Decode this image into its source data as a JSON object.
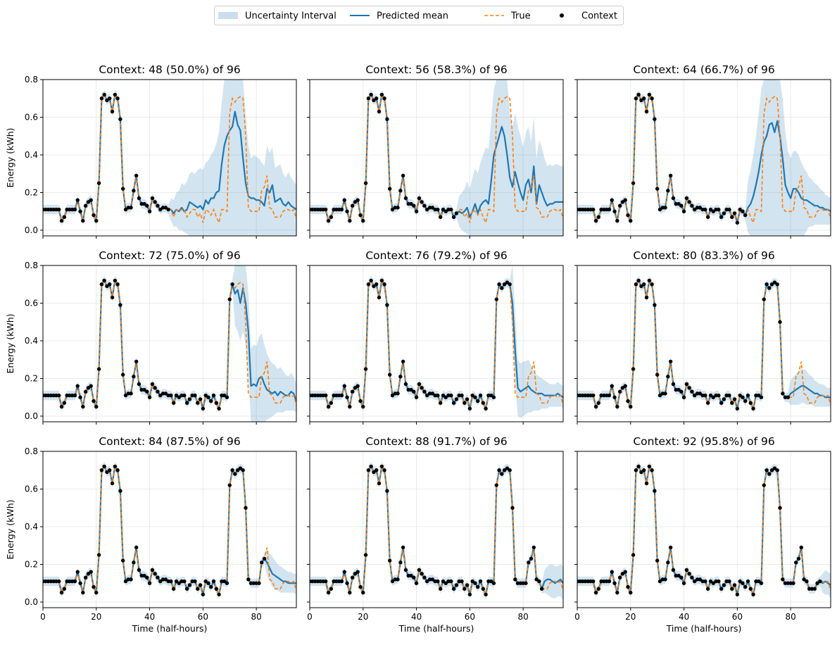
{
  "legend": {
    "items": [
      {
        "label": "Uncertainty Interval",
        "kind": "band",
        "color": "#a6c8e4"
      },
      {
        "label": "Predicted mean",
        "kind": "line",
        "color": "#1f77b4"
      },
      {
        "label": "True",
        "kind": "dashed",
        "color": "#ff7f0e"
      },
      {
        "label": "Context",
        "kind": "dot",
        "color": "#000000"
      }
    ],
    "placement": "top-center"
  },
  "colors": {
    "mean": "#1f77b4",
    "true": "#ff7f0e",
    "band": "#1f77b4",
    "context": "#000000",
    "grid": "#e5e5e5"
  },
  "chart_data": {
    "type": "line",
    "grid": true,
    "xlabel": "Time (half-hours)",
    "ylabel": "Energy (kWh)",
    "xlim": [
      0,
      95
    ],
    "ylim": [
      -0.03,
      0.8
    ],
    "xticks": [
      "0",
      "20",
      "40",
      "60",
      "80"
    ],
    "yticks": [
      "0.0",
      "0.2",
      "0.4",
      "0.6",
      "0.8"
    ],
    "series_names": [
      "Predicted mean",
      "True",
      "Context",
      "Uncertainty Interval"
    ],
    "true_values": [
      0.11,
      0.11,
      0.11,
      0.11,
      0.11,
      0.11,
      0.11,
      0.05,
      0.07,
      0.11,
      0.11,
      0.11,
      0.11,
      0.16,
      0.1,
      0.05,
      0.13,
      0.15,
      0.16,
      0.08,
      0.05,
      0.25,
      0.7,
      0.72,
      0.69,
      0.7,
      0.63,
      0.72,
      0.7,
      0.59,
      0.22,
      0.11,
      0.12,
      0.12,
      0.21,
      0.29,
      0.17,
      0.14,
      0.14,
      0.13,
      0.1,
      0.17,
      0.15,
      0.13,
      0.11,
      0.12,
      0.12,
      0.11,
      0.11,
      0.07,
      0.11,
      0.1,
      0.11,
      0.11,
      0.07,
      0.09,
      0.11,
      0.11,
      0.07,
      0.09,
      0.04,
      0.11,
      0.1,
      0.08,
      0.11,
      0.07,
      0.04,
      0.11,
      0.11,
      0.1,
      0.62,
      0.7,
      0.68,
      0.7,
      0.71,
      0.7,
      0.5,
      0.12,
      0.1,
      0.1,
      0.1,
      0.1,
      0.21,
      0.23,
      0.29,
      0.12,
      0.11,
      0.07,
      0.07,
      0.07,
      0.1,
      0.11,
      0.11,
      0.1,
      0.11,
      0.06
    ],
    "panels": [
      {
        "title": "Context: 48 (50.0%) of 96",
        "context": 48,
        "mean": [
          0.11,
          0.09,
          0.11,
          0.1,
          0.12,
          0.1,
          0.11,
          0.15,
          0.14,
          0.13,
          0.12,
          0.13,
          0.11,
          0.16,
          0.14,
          0.17,
          0.17,
          0.2,
          0.21,
          0.35,
          0.45,
          0.5,
          0.53,
          0.55,
          0.63,
          0.56,
          0.53,
          0.38,
          0.25,
          0.18,
          0.17,
          0.17,
          0.16,
          0.16,
          0.15,
          0.13,
          0.22,
          0.2,
          0.24,
          0.15,
          0.16,
          0.17,
          0.14,
          0.13,
          0.15,
          0.13,
          0.12,
          0.11
        ],
        "lo": [
          0.05,
          0.02,
          0.02,
          0.0,
          0.0,
          -0.01,
          -0.02,
          -0.03,
          -0.03,
          -0.03,
          -0.03,
          -0.03,
          -0.03,
          -0.03,
          -0.03,
          -0.03,
          -0.03,
          -0.03,
          -0.03,
          -0.03,
          -0.03,
          -0.03,
          -0.03,
          -0.03,
          -0.03,
          -0.03,
          -0.03,
          -0.03,
          -0.03,
          -0.03,
          -0.03,
          -0.03,
          -0.03,
          -0.03,
          -0.03,
          -0.03,
          -0.03,
          -0.03,
          -0.03,
          -0.03,
          -0.03,
          -0.03,
          -0.03,
          -0.03,
          -0.03,
          -0.03,
          -0.03,
          -0.03
        ],
        "hi": [
          0.17,
          0.16,
          0.2,
          0.21,
          0.25,
          0.24,
          0.26,
          0.3,
          0.31,
          0.3,
          0.32,
          0.33,
          0.32,
          0.36,
          0.37,
          0.4,
          0.42,
          0.46,
          0.52,
          0.68,
          0.8,
          0.8,
          0.8,
          0.8,
          0.8,
          0.8,
          0.8,
          0.8,
          0.62,
          0.45,
          0.38,
          0.4,
          0.39,
          0.38,
          0.36,
          0.34,
          0.45,
          0.41,
          0.44,
          0.33,
          0.34,
          0.35,
          0.3,
          0.28,
          0.31,
          0.28,
          0.26,
          0.24
        ]
      },
      {
        "title": "Context: 56 (58.3%) of 96",
        "context": 56,
        "mean": [
          0.1,
          0.09,
          0.1,
          0.12,
          0.07,
          0.1,
          0.14,
          0.09,
          0.13,
          0.15,
          0.16,
          0.14,
          0.26,
          0.4,
          0.45,
          0.5,
          0.55,
          0.5,
          0.4,
          0.28,
          0.23,
          0.31,
          0.25,
          0.2,
          0.16,
          0.24,
          0.27,
          0.2,
          0.34,
          0.14,
          0.24,
          0.2,
          0.16,
          0.13,
          0.14,
          0.14,
          0.15,
          0.15,
          0.15,
          0.15
        ],
        "lo": [
          0.02,
          0.0,
          -0.01,
          -0.02,
          -0.03,
          -0.03,
          -0.03,
          -0.03,
          -0.03,
          -0.03,
          -0.03,
          -0.03,
          -0.03,
          -0.03,
          -0.03,
          -0.03,
          -0.03,
          -0.03,
          -0.03,
          -0.03,
          -0.03,
          -0.03,
          -0.03,
          -0.03,
          -0.03,
          -0.03,
          -0.03,
          -0.03,
          -0.03,
          -0.03,
          -0.03,
          -0.03,
          -0.03,
          -0.03,
          -0.03,
          -0.03,
          -0.03,
          -0.03,
          -0.03,
          -0.03
        ],
        "hi": [
          0.18,
          0.2,
          0.22,
          0.26,
          0.22,
          0.28,
          0.33,
          0.3,
          0.36,
          0.4,
          0.44,
          0.43,
          0.58,
          0.75,
          0.8,
          0.8,
          0.8,
          0.8,
          0.8,
          0.62,
          0.55,
          0.62,
          0.55,
          0.5,
          0.44,
          0.52,
          0.55,
          0.47,
          0.6,
          0.38,
          0.48,
          0.44,
          0.38,
          0.34,
          0.35,
          0.34,
          0.35,
          0.35,
          0.34,
          0.34
        ]
      },
      {
        "title": "Context: 64 (66.7%) of 96",
        "context": 64,
        "mean": [
          0.12,
          0.14,
          0.18,
          0.24,
          0.31,
          0.4,
          0.47,
          0.5,
          0.56,
          0.57,
          0.52,
          0.58,
          0.5,
          0.38,
          0.24,
          0.2,
          0.17,
          0.22,
          0.22,
          0.2,
          0.17,
          0.16,
          0.16,
          0.15,
          0.14,
          0.13,
          0.13,
          0.12,
          0.12,
          0.11,
          0.11,
          0.1
        ],
        "lo": [
          -0.01,
          -0.03,
          -0.03,
          -0.03,
          -0.03,
          -0.03,
          -0.03,
          -0.03,
          -0.03,
          -0.03,
          -0.03,
          -0.03,
          -0.03,
          -0.03,
          -0.03,
          -0.03,
          -0.03,
          -0.03,
          -0.03,
          -0.03,
          -0.03,
          -0.03,
          0.0,
          0.02,
          0.02,
          0.03,
          0.03,
          0.03,
          0.03,
          0.03,
          0.03,
          0.03
        ],
        "hi": [
          0.26,
          0.32,
          0.4,
          0.5,
          0.62,
          0.75,
          0.8,
          0.8,
          0.8,
          0.8,
          0.8,
          0.8,
          0.8,
          0.7,
          0.52,
          0.42,
          0.38,
          0.42,
          0.42,
          0.4,
          0.36,
          0.33,
          0.31,
          0.28,
          0.27,
          0.25,
          0.24,
          0.22,
          0.21,
          0.19,
          0.18,
          0.17
        ]
      },
      {
        "title": "Context: 72 (75.0%) of 96",
        "context": 72,
        "mean": [
          0.65,
          0.67,
          0.6,
          0.68,
          0.6,
          0.45,
          0.16,
          0.17,
          0.16,
          0.2,
          0.21,
          0.17,
          0.14,
          0.13,
          0.12,
          0.13,
          0.11,
          0.13,
          0.12,
          0.11,
          0.11,
          0.13,
          0.12,
          0.08
        ],
        "lo": [
          0.48,
          0.45,
          0.4,
          0.45,
          0.38,
          0.22,
          -0.03,
          -0.03,
          -0.03,
          -0.03,
          -0.03,
          -0.03,
          -0.02,
          -0.01,
          0.0,
          0.01,
          0.02,
          0.02,
          0.02,
          0.03,
          0.03,
          0.03,
          0.03,
          0.02
        ],
        "hi": [
          0.8,
          0.8,
          0.8,
          0.8,
          0.8,
          0.66,
          0.36,
          0.38,
          0.37,
          0.42,
          0.44,
          0.38,
          0.33,
          0.3,
          0.28,
          0.27,
          0.25,
          0.26,
          0.24,
          0.22,
          0.21,
          0.23,
          0.21,
          0.17
        ]
      },
      {
        "title": "Context: 76 (79.2%) of 96",
        "context": 76,
        "mean": [
          0.6,
          0.35,
          0.15,
          0.13,
          0.14,
          0.15,
          0.16,
          0.14,
          0.13,
          0.12,
          0.12,
          0.12,
          0.11,
          0.11,
          0.11,
          0.11,
          0.11,
          0.12,
          0.11,
          0.1
        ],
        "lo": [
          0.42,
          0.18,
          0.0,
          -0.01,
          0.0,
          0.01,
          0.02,
          0.02,
          0.03,
          0.03,
          0.03,
          0.04,
          0.04,
          0.04,
          0.05,
          0.05,
          0.05,
          0.05,
          0.05,
          0.04
        ],
        "hi": [
          0.8,
          0.55,
          0.3,
          0.28,
          0.29,
          0.29,
          0.3,
          0.27,
          0.24,
          0.22,
          0.21,
          0.2,
          0.19,
          0.18,
          0.17,
          0.17,
          0.17,
          0.18,
          0.17,
          0.16
        ]
      },
      {
        "title": "Context: 80 (83.3%) of 96",
        "context": 80,
        "mean": [
          0.12,
          0.13,
          0.14,
          0.15,
          0.16,
          0.16,
          0.15,
          0.14,
          0.13,
          0.12,
          0.12,
          0.11,
          0.11,
          0.1,
          0.1,
          0.1
        ],
        "lo": [
          0.06,
          0.06,
          0.06,
          0.06,
          0.07,
          0.07,
          0.06,
          0.06,
          0.06,
          0.05,
          0.05,
          0.05,
          0.05,
          0.05,
          0.05,
          0.05
        ],
        "hi": [
          0.19,
          0.21,
          0.22,
          0.24,
          0.25,
          0.25,
          0.24,
          0.22,
          0.21,
          0.19,
          0.18,
          0.17,
          0.17,
          0.16,
          0.15,
          0.15
        ]
      },
      {
        "title": "Context: 84 (87.5%) of 96",
        "context": 84,
        "mean": [
          0.21,
          0.18,
          0.15,
          0.14,
          0.13,
          0.12,
          0.11,
          0.11,
          0.1,
          0.1,
          0.1,
          0.1
        ],
        "lo": [
          0.14,
          0.11,
          0.08,
          0.07,
          0.06,
          0.05,
          0.05,
          0.05,
          0.05,
          0.05,
          0.05,
          0.04
        ],
        "hi": [
          0.28,
          0.26,
          0.24,
          0.22,
          0.2,
          0.19,
          0.18,
          0.17,
          0.16,
          0.16,
          0.15,
          0.15
        ]
      },
      {
        "title": "Context: 88 (91.7%) of 96",
        "context": 88,
        "mean": [
          0.11,
          0.12,
          0.12,
          0.11,
          0.1,
          0.11,
          0.12,
          0.1
        ],
        "lo": [
          0.05,
          0.04,
          0.03,
          0.02,
          0.02,
          0.03,
          0.03,
          0.01
        ],
        "hi": [
          0.17,
          0.19,
          0.2,
          0.2,
          0.19,
          0.19,
          0.2,
          0.19
        ]
      },
      {
        "title": "Context: 92 (95.8%) of 96",
        "context": 92,
        "mean": [
          0.1,
          0.11,
          0.1,
          0.09
        ],
        "lo": [
          0.05,
          0.04,
          0.04,
          0.02
        ],
        "hi": [
          0.15,
          0.17,
          0.16,
          0.15
        ]
      }
    ]
  }
}
